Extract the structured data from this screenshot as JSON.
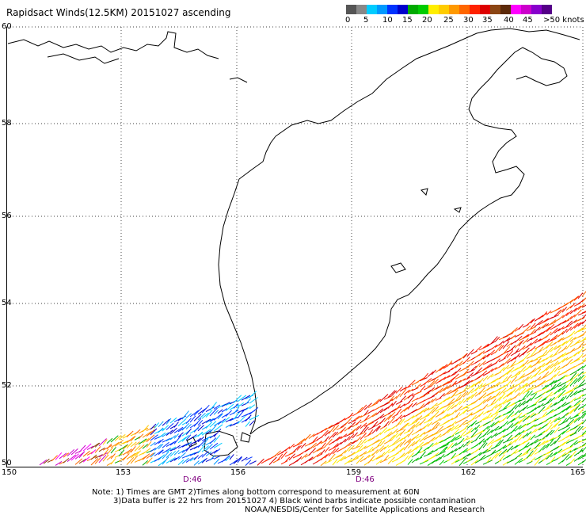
{
  "title": "Rapidsact Winds(12.5KM) 20151027 ascending",
  "scale": {
    "colors": [
      "#555555",
      "#888888",
      "#00ccff",
      "#0099ff",
      "#0033ff",
      "#0000cc",
      "#00aa00",
      "#00cc00",
      "#ffee00",
      "#ffcc00",
      "#ff9900",
      "#ff6600",
      "#ff2200",
      "#dd0000",
      "#8b4513",
      "#5c2a0a",
      "#ff00ff",
      "#cc00cc",
      "#8800cc",
      "#550088"
    ],
    "labels": [
      "0",
      "5",
      "10",
      "15",
      "20",
      "25",
      "30",
      "35",
      "40",
      "45",
      ">50 knots"
    ]
  },
  "lat_labels": [
    "60",
    "58",
    "56",
    "54",
    "52",
    "50"
  ],
  "lon_labels": [
    "150",
    "153",
    "156",
    "159",
    "162",
    "165"
  ],
  "time_labels": [
    "D:46",
    "D:46"
  ],
  "notes": [
    "Note: 1) Times are GMT 2)Times along bottom correspond to measurement at 60N",
    "3)Data buffer is 22 hrs from 20151027 4) Black wind barbs indicate possible contamination",
    "NOAA/NESDIS/Center for Satellite Applications and Research"
  ]
}
